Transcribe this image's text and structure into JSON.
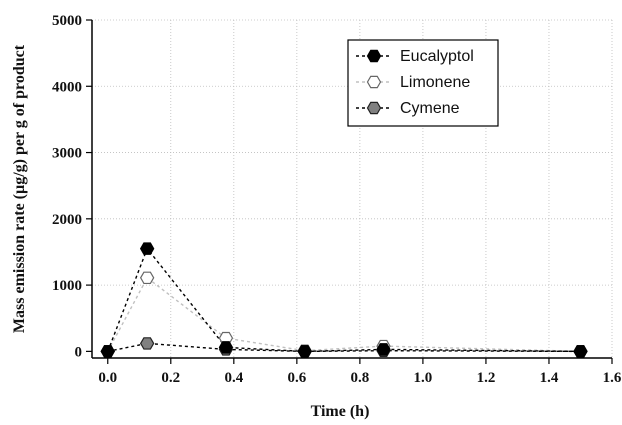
{
  "chart_data": {
    "type": "line",
    "xlabel": "Time (h)",
    "ylabel": "Mass emission rate (µg/g) per g of product",
    "xlim": [
      -0.05,
      1.6
    ],
    "ylim": [
      -100,
      5000
    ],
    "x_ticks": [
      "0.0",
      "0.2",
      "0.4",
      "0.6",
      "0.8",
      "1.0",
      "1.2",
      "1.4",
      "1.6"
    ],
    "y_ticks": [
      "0",
      "1000",
      "2000",
      "3000",
      "4000",
      "5000"
    ],
    "grid": true,
    "legend_position": "top-right",
    "series": [
      {
        "name": "Eucalyptol",
        "color": "#000000",
        "marker": "filled-black-hexagon",
        "line": "dashed",
        "x": [
          0.0,
          0.125,
          0.375,
          0.625,
          0.875,
          1.5
        ],
        "y": [
          0,
          1550,
          60,
          0,
          30,
          0
        ]
      },
      {
        "name": "Limonene",
        "color": "#c0c0c0",
        "marker": "open-hexagon",
        "line": "dashed",
        "x": [
          0.0,
          0.125,
          0.375,
          0.625,
          0.875,
          1.5
        ],
        "y": [
          0,
          1110,
          200,
          10,
          80,
          0
        ]
      },
      {
        "name": "Cymene",
        "color": "#000000",
        "marker": "filled-gray-hexagon",
        "line": "dashed",
        "x": [
          0.0,
          0.125,
          0.375,
          0.625,
          0.875,
          1.5
        ],
        "y": [
          0,
          120,
          30,
          0,
          10,
          0
        ]
      }
    ]
  }
}
